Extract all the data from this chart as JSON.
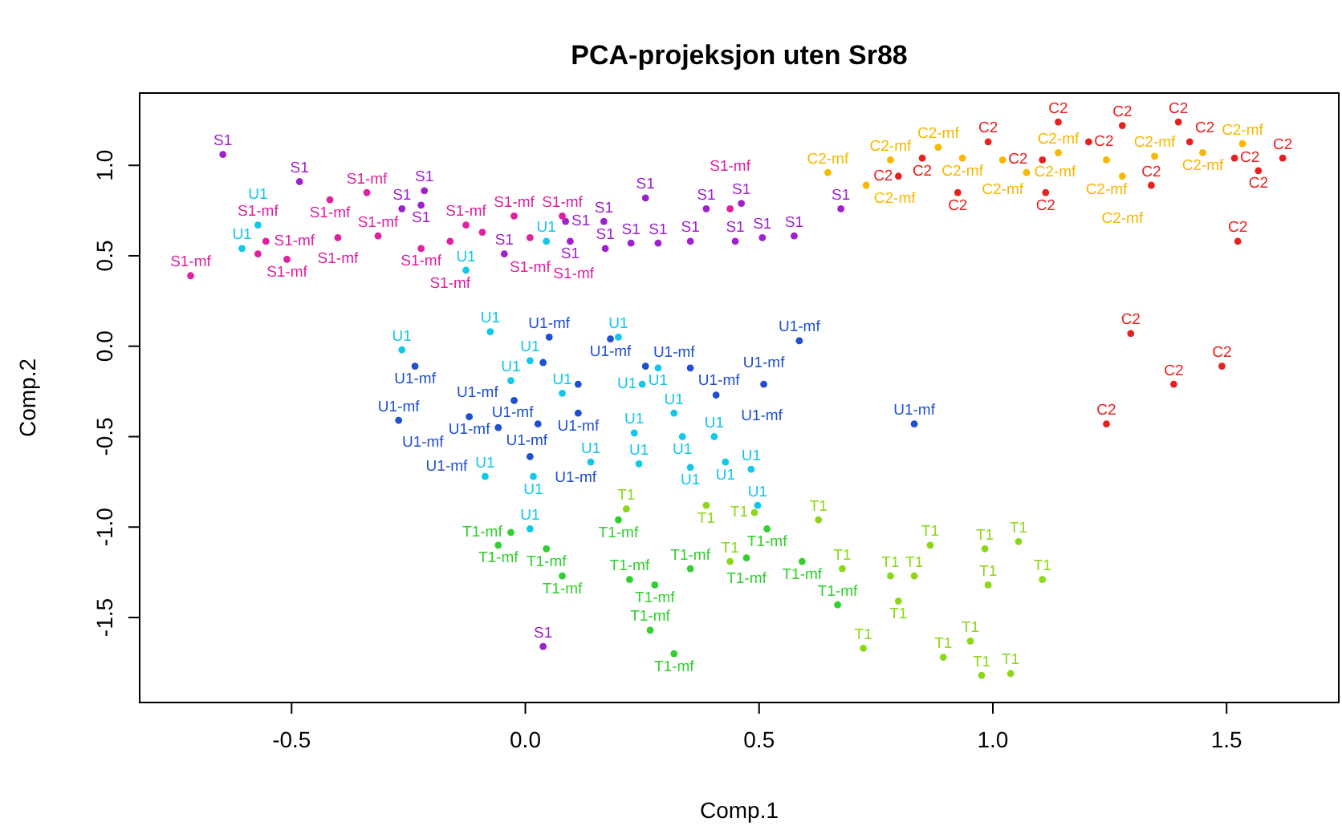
{
  "chart_data": {
    "type": "scatter",
    "title": "PCA-projeksjon uten Sr88",
    "xlabel": "Comp.1",
    "ylabel": "Comp.2",
    "xlim": [
      -0.825,
      1.74
    ],
    "ylim": [
      -1.97,
      1.4
    ],
    "xticks": [
      -0.5,
      {
        "value": 0,
        "label": "0.0"
      },
      0.5,
      {
        "value": 1,
        "label": "1.0"
      },
      1.5
    ],
    "yticks": [
      {
        "value": 1,
        "label": "1.0"
      },
      0.5,
      {
        "value": 0,
        "label": "0.0"
      },
      -0.5,
      {
        "value": -1,
        "label": "-1.0"
      },
      -1.5
    ],
    "grid": false,
    "legend": false,
    "marker": "circle",
    "series": [
      {
        "name": "S1",
        "color": "#a020d0",
        "x": [
          -0.647,
          -0.483,
          -0.216,
          -0.223,
          0.257,
          0.387,
          0.462,
          0.168,
          0.284,
          0.171,
          0.226,
          0.449,
          0.507,
          0.575,
          0.675,
          -0.045,
          0.086,
          0.038,
          -0.264,
          0.353,
          0.096
        ],
        "values": [
          1.06,
          0.91,
          0.86,
          0.78,
          0.82,
          0.76,
          0.79,
          0.69,
          0.57,
          0.54,
          0.57,
          0.58,
          0.6,
          0.61,
          0.76,
          0.51,
          0.69,
          -1.66,
          0.76,
          0.58,
          0.58
        ]
      },
      {
        "name": "S1-mf",
        "color": "#e020a0",
        "x": [
          -0.339,
          -0.418,
          -0.716,
          -0.555,
          -0.51,
          -0.401,
          -0.315,
          -0.223,
          -0.127,
          -0.024,
          0.079,
          -0.161,
          0.01,
          0.438,
          -0.092,
          -0.572
        ],
        "values": [
          0.85,
          0.81,
          0.39,
          0.58,
          0.48,
          0.6,
          0.61,
          0.54,
          0.67,
          0.72,
          0.72,
          0.58,
          0.6,
          0.76,
          0.63,
          0.51
        ]
      },
      {
        "name": "U1",
        "color": "#10c8e8",
        "x": [
          -0.572,
          -0.606,
          -0.127,
          -0.264,
          -0.075,
          -0.031,
          0.01,
          0.199,
          0.284,
          0.25,
          0.233,
          0.336,
          0.404,
          -0.086,
          0.017,
          0.14,
          0.243,
          0.353,
          0.428,
          0.483,
          0.497,
          0.01,
          0.318,
          0.045,
          0.079
        ],
        "values": [
          0.67,
          0.54,
          0.42,
          -0.02,
          0.08,
          -0.19,
          -0.08,
          0.05,
          -0.12,
          -0.21,
          -0.48,
          -0.5,
          -0.5,
          -0.72,
          -0.72,
          -0.64,
          -0.65,
          -0.67,
          -0.64,
          -0.68,
          -0.88,
          -1.01,
          -0.37,
          0.58,
          -0.26
        ]
      },
      {
        "name": "U1-mf",
        "color": "#2050d0",
        "x": [
          -0.236,
          0.051,
          0.182,
          0.586,
          0.038,
          0.113,
          0.257,
          0.353,
          0.51,
          0.408,
          -0.271,
          -0.12,
          -0.058,
          0.027,
          0.113,
          0.01,
          0.832,
          -0.024
        ],
        "values": [
          -0.11,
          0.05,
          0.04,
          0.03,
          -0.09,
          -0.21,
          -0.11,
          -0.12,
          -0.21,
          -0.27,
          -0.41,
          -0.39,
          -0.45,
          -0.43,
          -0.37,
          -0.61,
          -0.43,
          -0.3
        ]
      },
      {
        "name": "T1",
        "color": "#8cd818",
        "x": [
          0.216,
          0.387,
          0.49,
          0.627,
          0.678,
          0.781,
          0.798,
          0.832,
          0.983,
          1.055,
          0.99,
          1.106,
          0.723,
          0.894,
          0.952,
          1.038,
          0.976,
          0.438,
          0.866
        ],
        "values": [
          -0.9,
          -0.88,
          -0.92,
          -0.96,
          -1.23,
          -1.27,
          -1.41,
          -1.27,
          -1.12,
          -1.08,
          -1.32,
          -1.29,
          -1.67,
          -1.72,
          -1.63,
          -1.81,
          -1.82,
          -1.19,
          -1.1
        ]
      },
      {
        "name": "T1-mf",
        "color": "#30d030",
        "x": [
          -0.031,
          0.045,
          0.199,
          0.079,
          0.223,
          0.353,
          0.277,
          0.517,
          0.592,
          0.668,
          0.267,
          0.318,
          0.473,
          -0.058
        ],
        "values": [
          -1.03,
          -1.12,
          -0.96,
          -1.27,
          -1.29,
          -1.23,
          -1.32,
          -1.01,
          -1.19,
          -1.43,
          -1.57,
          -1.7,
          -1.17,
          -1.1
        ]
      },
      {
        "name": "C2-mf",
        "color": "#f8b800",
        "x": [
          0.647,
          0.729,
          0.781,
          0.883,
          0.935,
          1.021,
          1.14,
          1.243,
          1.346,
          1.449,
          1.534,
          1.072,
          1.277
        ],
        "values": [
          0.96,
          0.89,
          1.03,
          1.1,
          1.04,
          1.03,
          1.07,
          1.03,
          1.05,
          1.07,
          1.12,
          0.96,
          0.94
        ]
      },
      {
        "name": "C2",
        "color": "#e82020",
        "x": [
          1.14,
          1.277,
          1.397,
          0.99,
          1.205,
          1.421,
          0.849,
          1.517,
          1.62,
          0.925,
          1.113,
          1.339,
          1.568,
          1.524,
          1.295,
          1.49,
          1.387,
          1.243,
          1.106,
          0.798
        ],
        "values": [
          1.24,
          1.22,
          1.24,
          1.13,
          1.13,
          1.13,
          1.04,
          1.04,
          1.04,
          0.85,
          0.85,
          0.89,
          0.97,
          0.58,
          0.07,
          -0.11,
          -0.21,
          -0.43,
          1.03,
          0.94
        ]
      }
    ]
  }
}
